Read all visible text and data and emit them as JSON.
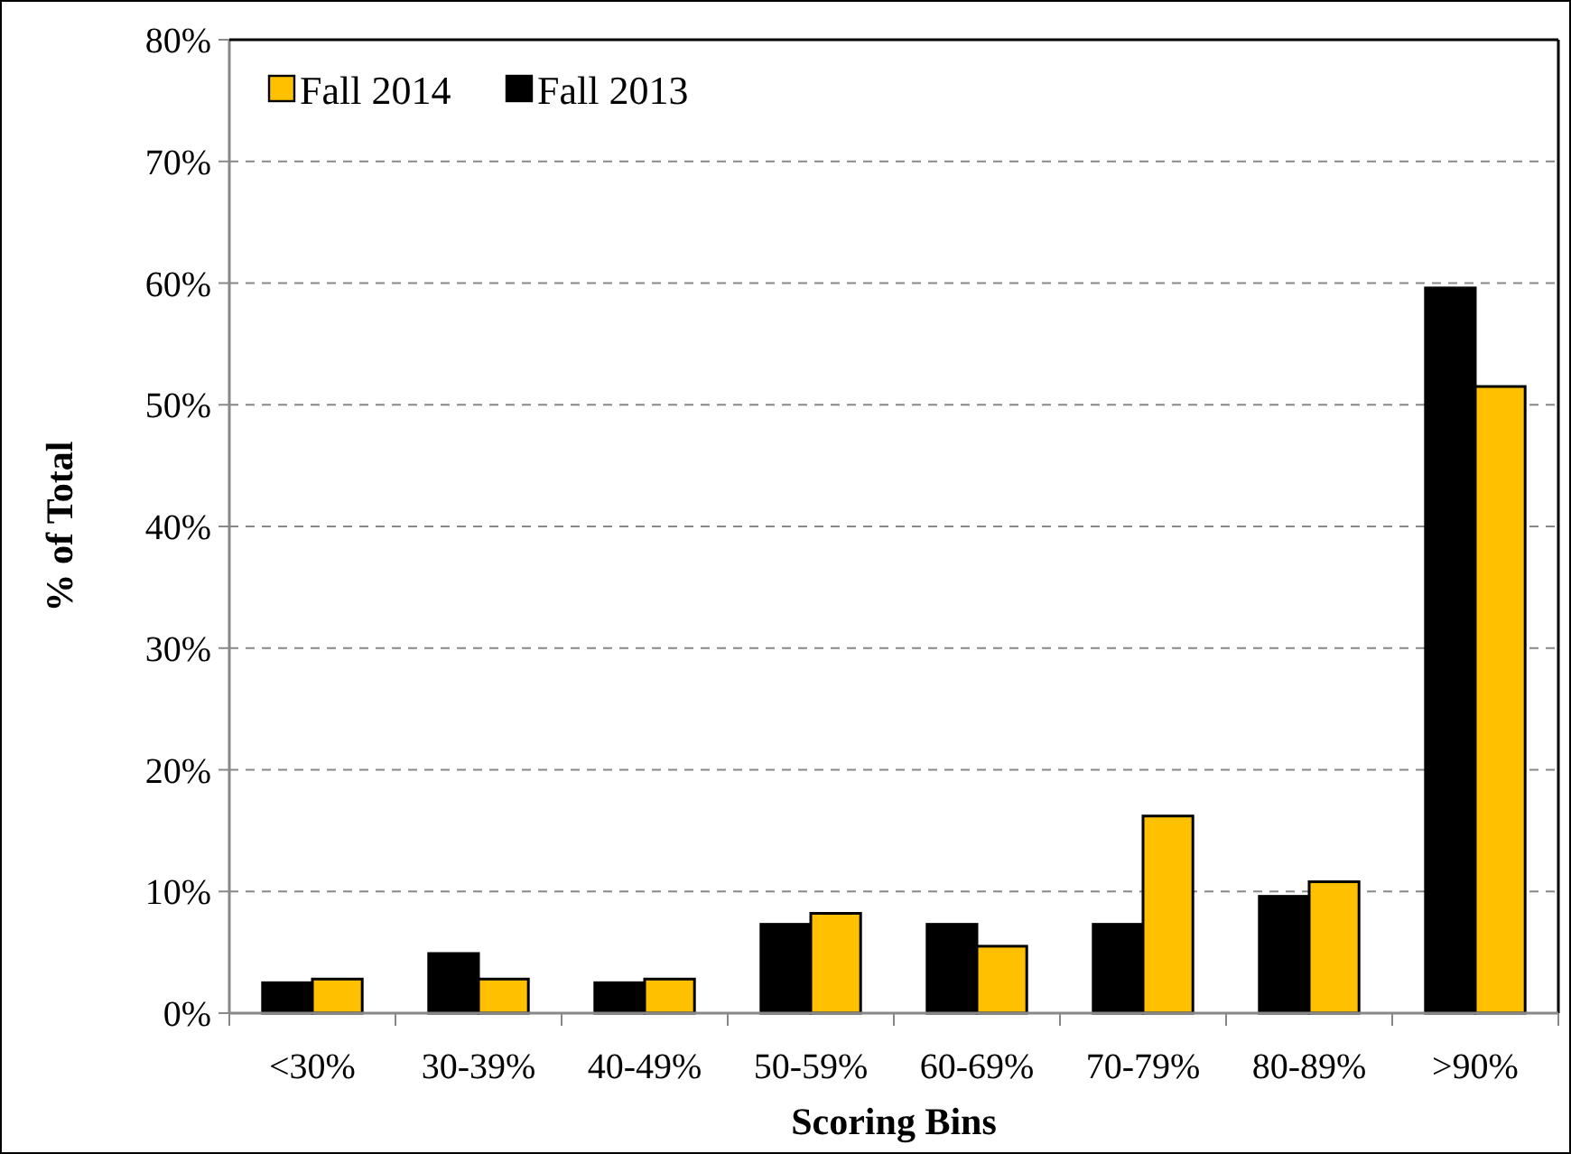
{
  "chart_data": {
    "type": "bar",
    "xlabel": "Scoring Bins",
    "ylabel": "% of Total",
    "categories": [
      "<30%",
      "30-39%",
      "40-49%",
      "50-59%",
      "60-69%",
      "70-79%",
      "80-89%",
      ">90%"
    ],
    "series": [
      {
        "name": "Fall 2013",
        "color": "#000000",
        "values": [
          2.5,
          4.9,
          2.5,
          7.3,
          7.3,
          7.3,
          9.6,
          59.6
        ]
      },
      {
        "name": "Fall 2014",
        "color": "#ffc000",
        "values": [
          2.8,
          2.8,
          2.8,
          8.2,
          5.5,
          16.2,
          10.8,
          51.5
        ]
      }
    ],
    "ylim": [
      0,
      80
    ],
    "yticks": [
      {
        "value": 0,
        "label": "0%"
      },
      {
        "value": 10,
        "label": "10%"
      },
      {
        "value": 20,
        "label": "20%"
      },
      {
        "value": 30,
        "label": "30%"
      },
      {
        "value": 40,
        "label": "40%"
      },
      {
        "value": 50,
        "label": "50%"
      },
      {
        "value": 60,
        "label": "60%"
      },
      {
        "value": 70,
        "label": "70%"
      },
      {
        "value": 80,
        "label": "80%"
      }
    ],
    "grid": "y",
    "legend": "top left"
  }
}
